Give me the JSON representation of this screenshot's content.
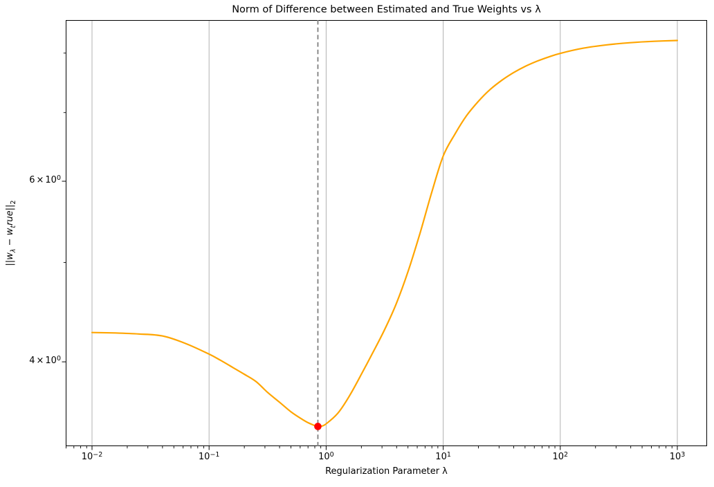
{
  "figure": {
    "background": "#ffffff"
  },
  "chart_data": {
    "type": "line",
    "title": "Norm of Difference between Estimated and True Weights vs λ",
    "xlabel": "Regularization Parameter λ",
    "ylabel": "||w_λ − w_true||_2",
    "ylabel_parts": {
      "bar1": "||",
      "w1": "w",
      "sub1": "λ",
      "minus": " − ",
      "w2": "w",
      "sub2": "t",
      "rue": "rue",
      "bar2": "||",
      "sub3": "2"
    },
    "x_scale": "log",
    "y_scale": "log",
    "xlim": [
      0.006,
      1800
    ],
    "ylim": [
      3.31,
      8.62
    ],
    "grid": {
      "axis": "x",
      "color": "#b0b0b0"
    },
    "axes_color": "#000000",
    "x_ticks": [
      {
        "value": 0.01,
        "base": "10",
        "exp": "−2"
      },
      {
        "value": 0.1,
        "base": "10",
        "exp": "−1"
      },
      {
        "value": 1,
        "base": "10",
        "exp": "0"
      },
      {
        "value": 10,
        "base": "10",
        "exp": "1"
      },
      {
        "value": 100,
        "base": "10",
        "exp": "2"
      },
      {
        "value": 1000,
        "base": "10",
        "exp": "3"
      }
    ],
    "y_ticks": [
      {
        "value": 6,
        "coeff": "6",
        "times": "×",
        "base": "10",
        "exp": "0"
      },
      {
        "value": 4,
        "coeff": "4",
        "times": "×",
        "base": "10",
        "exp": "0"
      }
    ],
    "x_minor_multiples": [
      2,
      3,
      4,
      5,
      6,
      7,
      8,
      9
    ],
    "y_minor_tick_values": [
      5,
      7,
      8
    ],
    "series": [
      {
        "name": "norm_difference_curve",
        "color": "#ffa500",
        "linewidth": 2.2,
        "points": [
          [
            0.01,
            4.272
          ],
          [
            0.0158,
            4.268
          ],
          [
            0.0251,
            4.258
          ],
          [
            0.0398,
            4.24
          ],
          [
            0.0631,
            4.168
          ],
          [
            0.1,
            4.07
          ],
          [
            0.126,
            4.012
          ],
          [
            0.158,
            3.952
          ],
          [
            0.2,
            3.89
          ],
          [
            0.251,
            3.828
          ],
          [
            0.316,
            3.735
          ],
          [
            0.398,
            3.655
          ],
          [
            0.501,
            3.575
          ],
          [
            0.631,
            3.513
          ],
          [
            0.708,
            3.487
          ],
          [
            0.794,
            3.468
          ],
          [
            0.845,
            3.456
          ],
          [
            0.912,
            3.462
          ],
          [
            1.0,
            3.48
          ],
          [
            1.26,
            3.565
          ],
          [
            1.58,
            3.705
          ],
          [
            2.0,
            3.89
          ],
          [
            2.51,
            4.085
          ],
          [
            3.16,
            4.3
          ],
          [
            3.98,
            4.56
          ],
          [
            5.01,
            4.9
          ],
          [
            6.31,
            5.33
          ],
          [
            7.94,
            5.84
          ],
          [
            10,
            6.35
          ],
          [
            12.6,
            6.67
          ],
          [
            15.8,
            6.95
          ],
          [
            20,
            7.18
          ],
          [
            25.1,
            7.37
          ],
          [
            31.6,
            7.525
          ],
          [
            39.8,
            7.655
          ],
          [
            50.1,
            7.765
          ],
          [
            63.1,
            7.855
          ],
          [
            79.4,
            7.93
          ],
          [
            100,
            7.995
          ],
          [
            158,
            8.09
          ],
          [
            251,
            8.15
          ],
          [
            398,
            8.19
          ],
          [
            631,
            8.215
          ],
          [
            1000,
            8.23
          ]
        ]
      }
    ],
    "min_point": {
      "lambda": 0.85,
      "value": 3.46,
      "color": "#ff0000"
    },
    "vline": {
      "lambda": 0.85,
      "color": "#7f7f7f",
      "style": "dashed"
    }
  }
}
